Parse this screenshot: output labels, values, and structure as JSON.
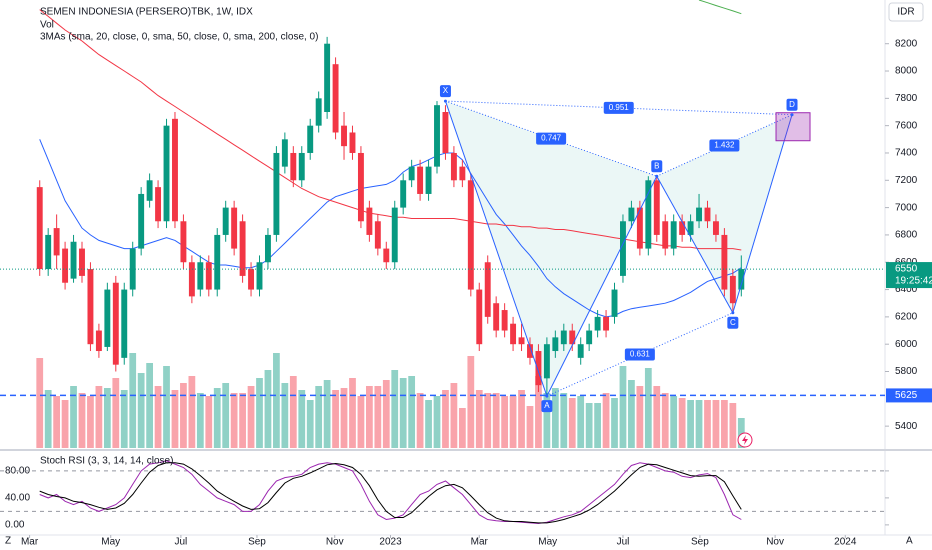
{
  "chart_data": {
    "type": "candlestick",
    "title": "SEMEN INDONESIA (PERSERO)TBK, 1W, IDX",
    "volume_label": "Vol",
    "ma_label": "3MAs (sma, 20, close, 0, sma, 50, close, 0, sma, 200, close, 0)",
    "currency": "IDR",
    "countdown": "19:25:42",
    "up_color": "#089981",
    "down_color": "#f23645",
    "xlim": [
      -4.7,
      100
    ],
    "xticks": [
      {
        "value": -1.2,
        "label": "Mar"
      },
      {
        "value": 8.4,
        "label": "May"
      },
      {
        "value": 16.7,
        "label": "Jul"
      },
      {
        "value": 25.7,
        "label": "Sep"
      },
      {
        "value": 34.9,
        "label": "Nov"
      },
      {
        "value": 41.5,
        "label": "2023"
      },
      {
        "value": 52,
        "label": "Mar"
      },
      {
        "value": 60.1,
        "label": "May"
      },
      {
        "value": 69,
        "label": "Jul"
      },
      {
        "value": 78.1,
        "label": "Sep"
      },
      {
        "value": 87,
        "label": "Nov"
      },
      {
        "value": 95.3,
        "label": "2024"
      }
    ],
    "ylim": [
      5240,
      8520
    ],
    "yticks": [
      5400,
      5800,
      6000,
      6200,
      6400,
      6600,
      6800,
      7000,
      7200,
      7400,
      7600,
      7800,
      8000,
      8200
    ],
    "candles": [
      [
        7150,
        7200,
        6500,
        6550
      ],
      [
        6550,
        6850,
        6500,
        6800
      ],
      [
        6850,
        6950,
        6550,
        6650
      ],
      [
        6700,
        6750,
        6400,
        6450
      ],
      [
        6480,
        6800,
        6450,
        6750
      ],
      [
        6700,
        6750,
        6450,
        6500
      ],
      [
        6550,
        6600,
        5950,
        6000
      ],
      [
        6100,
        6150,
        5900,
        5950
      ],
      [
        5980,
        6450,
        5950,
        6400
      ],
      [
        6450,
        6500,
        5800,
        5850
      ],
      [
        5900,
        6450,
        5850,
        6400
      ],
      [
        6400,
        6750,
        6350,
        6700
      ],
      [
        6700,
        7150,
        6650,
        7100
      ],
      [
        7050,
        7250,
        7000,
        7200
      ],
      [
        7150,
        7200,
        6850,
        6900
      ],
      [
        6900,
        7650,
        6850,
        7600
      ],
      [
        7650,
        7700,
        6850,
        6900
      ],
      [
        6900,
        6950,
        6550,
        6600
      ],
      [
        6600,
        6650,
        6300,
        6350
      ],
      [
        6400,
        6650,
        6350,
        6600
      ],
      [
        6600,
        6650,
        6350,
        6400
      ],
      [
        6400,
        6850,
        6350,
        6800
      ],
      [
        6800,
        7050,
        6750,
        7000
      ],
      [
        7000,
        7050,
        6650,
        6700
      ],
      [
        6900,
        6950,
        6450,
        6500
      ],
      [
        6550,
        6600,
        6350,
        6400
      ],
      [
        6400,
        6650,
        6350,
        6600
      ],
      [
        6600,
        6850,
        6550,
        6800
      ],
      [
        6800,
        7450,
        6750,
        7400
      ],
      [
        7300,
        7550,
        7250,
        7500
      ],
      [
        7400,
        7450,
        7150,
        7200
      ],
      [
        7200,
        7450,
        7150,
        7400
      ],
      [
        7400,
        7650,
        7350,
        7600
      ],
      [
        7600,
        7850,
        7550,
        7800
      ],
      [
        7700,
        8250,
        7650,
        8200
      ],
      [
        8050,
        8100,
        7500,
        7550
      ],
      [
        7600,
        7700,
        7350,
        7450
      ],
      [
        7550,
        7600,
        7350,
        7400
      ],
      [
        7400,
        7450,
        6850,
        6900
      ],
      [
        7000,
        7050,
        6750,
        6800
      ],
      [
        6900,
        6950,
        6650,
        6700
      ],
      [
        6700,
        6750,
        6550,
        6600
      ],
      [
        6600,
        7050,
        6550,
        7000
      ],
      [
        7000,
        7250,
        6950,
        7200
      ],
      [
        7200,
        7350,
        7150,
        7300
      ],
      [
        7300,
        7350,
        7050,
        7100
      ],
      [
        7100,
        7350,
        7050,
        7300
      ],
      [
        7300,
        7780,
        7250,
        7750
      ],
      [
        7700,
        7750,
        7350,
        7400
      ],
      [
        7400,
        7450,
        7150,
        7200
      ],
      [
        7300,
        7350,
        7150,
        7200
      ],
      [
        7200,
        7250,
        6350,
        6400
      ],
      [
        6400,
        6450,
        5950,
        6000
      ],
      [
        6600,
        6650,
        6150,
        6200
      ],
      [
        6300,
        6350,
        6050,
        6100
      ],
      [
        6250,
        6300,
        6050,
        6100
      ],
      [
        6150,
        6200,
        5950,
        6000
      ],
      [
        6050,
        6150,
        5950,
        6000
      ],
      [
        6000,
        6050,
        5850,
        5900
      ],
      [
        5950,
        6000,
        5650,
        5700
      ],
      [
        5750,
        6050,
        5620,
        6000
      ],
      [
        5950,
        6100,
        5900,
        6050
      ],
      [
        6000,
        6150,
        5950,
        6100
      ],
      [
        6100,
        6150,
        5950,
        6000
      ],
      [
        5900,
        6050,
        5850,
        6000
      ],
      [
        6000,
        6150,
        5950,
        6100
      ],
      [
        6100,
        6250,
        6050,
        6200
      ],
      [
        6200,
        6250,
        6050,
        6100
      ],
      [
        6200,
        6450,
        6150,
        6400
      ],
      [
        6500,
        6950,
        6450,
        6900
      ],
      [
        6900,
        7050,
        6850,
        7000
      ],
      [
        7000,
        7050,
        6650,
        6700
      ],
      [
        6700,
        7230,
        6650,
        7200
      ],
      [
        7200,
        7230,
        6750,
        6800
      ],
      [
        6900,
        6950,
        6650,
        6700
      ],
      [
        6700,
        6950,
        6650,
        6900
      ],
      [
        6900,
        6950,
        6750,
        6800
      ],
      [
        6800,
        6950,
        6750,
        6900
      ],
      [
        6900,
        7100,
        6850,
        7000
      ],
      [
        7000,
        7050,
        6850,
        6900
      ],
      [
        6900,
        6950,
        6750,
        6800
      ],
      [
        6800,
        6850,
        6350,
        6400
      ],
      [
        6500,
        6550,
        6230,
        6300
      ],
      [
        6400,
        6650,
        6350,
        6550
      ]
    ],
    "volume": [
      90,
      58,
      52,
      48,
      62,
      55,
      52,
      62,
      60,
      70,
      58,
      95,
      75,
      85,
      62,
      82,
      58,
      65,
      72,
      55,
      52,
      60,
      65,
      55,
      55,
      62,
      70,
      78,
      95,
      65,
      72,
      58,
      48,
      62,
      68,
      58,
      60,
      70,
      52,
      62,
      62,
      68,
      78,
      70,
      72,
      55,
      48,
      52,
      58,
      65,
      40,
      92,
      58,
      55,
      55,
      52,
      52,
      58,
      42,
      72,
      55,
      60,
      55,
      50,
      52,
      45,
      45,
      55,
      50,
      82,
      68,
      62,
      80,
      62,
      55,
      52,
      50,
      48,
      48,
      48,
      48,
      48,
      45,
      30
    ],
    "mas": [
      {
        "color": "#2962ff",
        "values": [
          7500,
          7350,
          7200,
          7050,
          6950,
          6850,
          6800,
          6760,
          6740,
          6720,
          6700,
          6700,
          6720,
          6740,
          6760,
          6780,
          6760,
          6720,
          6680,
          6640,
          6600,
          6580,
          6580,
          6570,
          6560,
          6560,
          6580,
          6620,
          6680,
          6740,
          6800,
          6860,
          6920,
          6980,
          7040,
          7080,
          7100,
          7120,
          7140,
          7150,
          7160,
          7170,
          7200,
          7260,
          7300,
          7320,
          7350,
          7380,
          7400,
          7400,
          7350,
          7250,
          7150,
          7050,
          6950,
          6880,
          6800,
          6720,
          6650,
          6570,
          6480,
          6420,
          6370,
          6330,
          6290,
          6250,
          6220,
          6200,
          6210,
          6240,
          6260,
          6270,
          6280,
          6290,
          6300,
          6320,
          6350,
          6380,
          6420,
          6460,
          6480,
          6500,
          6520,
          6560
        ]
      },
      {
        "color": "#f23645",
        "values": [
          8450,
          8400,
          8350,
          8300,
          8260,
          8220,
          8170,
          8120,
          8080,
          8040,
          8000,
          7960,
          7920,
          7870,
          7820,
          7780,
          7740,
          7700,
          7660,
          7620,
          7580,
          7540,
          7500,
          7460,
          7420,
          7380,
          7340,
          7300,
          7260,
          7220,
          7180,
          7140,
          7110,
          7080,
          7060,
          7040,
          7020,
          7000,
          6980,
          6960,
          6950,
          6940,
          6930,
          6930,
          6920,
          6920,
          6920,
          6920,
          6920,
          6920,
          6910,
          6900,
          6890,
          6880,
          6880,
          6870,
          6870,
          6860,
          6860,
          6850,
          6850,
          6840,
          6840,
          6830,
          6820,
          6810,
          6800,
          6790,
          6780,
          6770,
          6760,
          6750,
          6740,
          6730,
          6720,
          6720,
          6710,
          6710,
          6700,
          6700,
          6700,
          6700,
          6700,
          6690
        ]
      },
      {
        "color": "#4caf50",
        "values": [
          null,
          null,
          null,
          null,
          null,
          null,
          null,
          null,
          null,
          null,
          null,
          null,
          null,
          null,
          null,
          null,
          null,
          null,
          null,
          null,
          null,
          null,
          null,
          null,
          null,
          null,
          null,
          null,
          null,
          null,
          null,
          null,
          null,
          null,
          null,
          null,
          null,
          null,
          null,
          null,
          null,
          null,
          null,
          null,
          null,
          null,
          null,
          null,
          null,
          null,
          null,
          null,
          null,
          null,
          null,
          null,
          null,
          null,
          null,
          null,
          null,
          null,
          null,
          null,
          null,
          null,
          null,
          null,
          null,
          null,
          null,
          null,
          null,
          null,
          null,
          null,
          null,
          null,
          8520,
          8500,
          8480,
          8460,
          8440,
          8420
        ]
      }
    ],
    "hline": {
      "value": 5625,
      "color": "#2962ff"
    },
    "pattern": {
      "color": "#2962ff",
      "points": [
        {
          "label": "X",
          "x": 48,
          "y": 7780
        },
        {
          "label": "A",
          "x": 60,
          "y": 5620
        },
        {
          "label": "B",
          "x": 73,
          "y": 7230
        },
        {
          "label": "C",
          "x": 82,
          "y": 6230
        },
        {
          "label": "D",
          "x": 89,
          "y": 7680
        }
      ],
      "ratios": [
        {
          "value": 0.951,
          "from": 0,
          "to": 4
        },
        {
          "value": 0.747,
          "from": 0,
          "to": 2
        },
        {
          "value": 1.432,
          "from": 2,
          "to": 4
        },
        {
          "value": 0.631,
          "from": 1,
          "to": 3
        }
      ]
    },
    "stoch": {
      "label": "Stoch RSI (3, 3, 14, 14, close)",
      "ylim": [
        -15,
        108
      ],
      "yticks": [
        {
          "value": 80,
          "label": "80.00"
        },
        {
          "value": 40,
          "label": "40.00"
        },
        {
          "value": 0,
          "label": "0.00"
        }
      ],
      "bands": [
        80,
        20
      ],
      "k": {
        "color": "#9c27b0",
        "values": [
          45,
          40,
          45,
          35,
          30,
          35,
          25,
          20,
          25,
          30,
          40,
          60,
          80,
          90,
          92,
          95,
          90,
          85,
          75,
          60,
          50,
          40,
          35,
          30,
          20,
          20,
          30,
          50,
          65,
          70,
          72,
          75,
          85,
          90,
          92,
          90,
          85,
          80,
          60,
          35,
          15,
          8,
          10,
          15,
          30,
          45,
          50,
          60,
          65,
          55,
          45,
          30,
          15,
          8,
          6,
          5,
          5,
          4,
          3,
          2,
          4,
          8,
          12,
          15,
          20,
          30,
          40,
          50,
          60,
          75,
          88,
          92,
          90,
          85,
          80,
          78,
          72,
          70,
          74,
          76,
          70,
          45,
          15,
          8
        ]
      },
      "d": {
        "color": "#000000",
        "values": [
          50,
          45,
          42,
          40,
          35,
          33,
          30,
          26,
          23,
          25,
          32,
          45,
          62,
          78,
          88,
          92,
          92,
          90,
          83,
          73,
          62,
          50,
          42,
          35,
          28,
          23,
          24,
          33,
          48,
          62,
          69,
          72,
          77,
          83,
          89,
          91,
          89,
          85,
          75,
          58,
          37,
          20,
          11,
          11,
          18,
          30,
          42,
          52,
          58,
          60,
          55,
          43,
          30,
          18,
          10,
          6,
          5,
          5,
          4,
          3,
          3,
          5,
          8,
          12,
          16,
          22,
          30,
          40,
          50,
          62,
          74,
          85,
          90,
          89,
          85,
          81,
          77,
          73,
          72,
          73,
          73,
          64,
          43,
          23
        ]
      }
    }
  }
}
